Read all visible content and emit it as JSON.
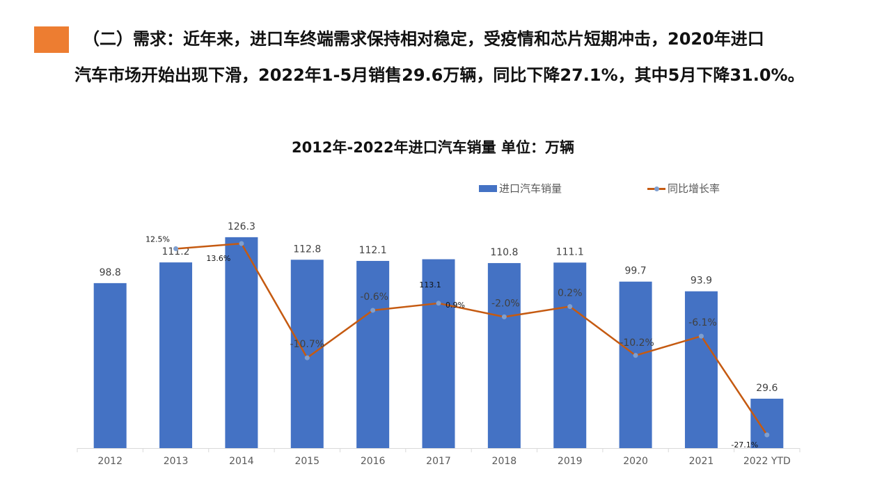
{
  "headline": {
    "line1": "（二）需求：近年来，进口车终端需求保持相对稳定，受疫情和芯片短期冲击，2020年进口",
    "line2": "汽车市场开始出现下滑，2022年1-5月销售29.6万辆，同比下降27.1%，其中5月下降31.0%。"
  },
  "colors": {
    "accent": "#ED7D31",
    "bar": "#4472C4",
    "line": "#C55A11",
    "marker": "#7F9FCF"
  },
  "chart_data": {
    "type": "bar",
    "title": "2012年-2022年进口汽车销量  单位：万辆",
    "categories": [
      "2012",
      "2013",
      "2014",
      "2015",
      "2016",
      "2017",
      "2018",
      "2019",
      "2020",
      "2021",
      "2022 YTD"
    ],
    "series": [
      {
        "name": "进口汽车销量",
        "type": "bar",
        "values": [
          98.8,
          111.2,
          126.3,
          112.8,
          112.1,
          113.1,
          110.8,
          111.1,
          99.7,
          93.9,
          29.6
        ],
        "labels": [
          "98.8",
          "111.2",
          "126.3",
          "112.8",
          "112.1",
          "113.1",
          "110.8",
          "111.1",
          "99.7",
          "93.9",
          "29.6"
        ]
      },
      {
        "name": "同比增长率",
        "type": "line",
        "values": [
          null,
          12.5,
          13.6,
          -10.7,
          -0.6,
          0.9,
          -2.0,
          0.2,
          -10.2,
          -6.1,
          -27.1
        ],
        "labels": [
          "",
          "12.5%",
          "13.6%",
          "-10.7%",
          "-0.6%",
          "0.9%",
          "-2.0%",
          "0.2%",
          "-10.2%",
          "-6.1%",
          "-27.1%"
        ]
      }
    ],
    "legend_position": "top-right",
    "grid": false
  }
}
